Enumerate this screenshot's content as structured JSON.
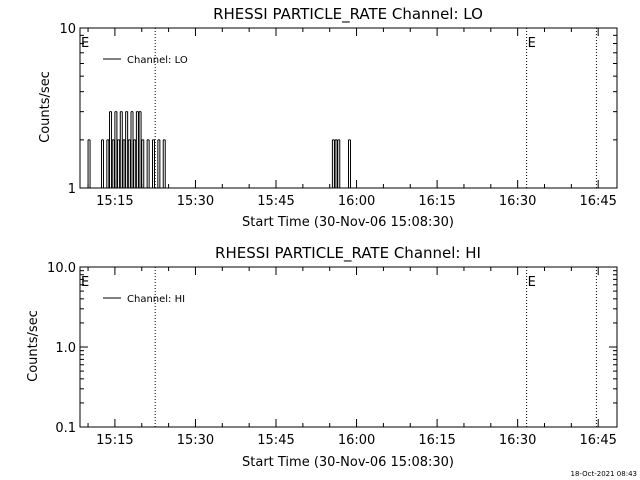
{
  "footer_timestamp": "18-Oct-2021 08:43",
  "colors": {
    "background": "#ffffff",
    "ink": "#000000"
  },
  "chart_data": [
    {
      "type": "line",
      "title": "RHESSI PARTICLE_RATE Channel: LO",
      "xlabel": "Start Time (30-Nov-06 15:08:30)",
      "ylabel": "Counts/sec",
      "yscale": "log",
      "xlim": [
        "15:08:30",
        "16:48:30"
      ],
      "ylim": [
        1,
        10
      ],
      "x_ticks": [
        "15:15",
        "15:30",
        "15:45",
        "16:00",
        "16:15",
        "16:30",
        "16:45"
      ],
      "y_ticks": [
        "1",
        "10"
      ],
      "legend_position": "top-left",
      "series": [
        {
          "name": "Channel: LO",
          "x": [
            "15:09:30",
            "15:10:00",
            "15:10:30",
            "15:11:00",
            "15:12:00",
            "15:12:30",
            "15:13:00",
            "15:13:30",
            "15:14:00",
            "15:14:30",
            "15:15:00",
            "15:15:30",
            "15:16:00",
            "15:16:30",
            "15:17:00",
            "15:17:30",
            "15:18:00",
            "15:18:30",
            "15:19:00",
            "15:19:30",
            "15:20:00",
            "15:20:30",
            "15:21:00",
            "15:21:30",
            "15:22:00",
            "15:22:30",
            "15:23:00",
            "15:23:30",
            "15:24:00",
            "15:24:30",
            "15:55:00",
            "15:55:30",
            "15:56:00",
            "15:56:30",
            "15:57:00",
            "15:57:30",
            "15:58:00",
            "15:58:30",
            "15:59:00"
          ],
          "y": [
            1,
            2,
            1,
            1,
            1,
            2,
            1,
            2,
            3,
            2,
            3,
            2,
            3,
            2,
            3,
            2,
            3,
            2,
            3,
            3,
            2,
            1,
            2,
            1,
            2,
            1,
            2,
            1,
            2,
            1,
            1,
            2,
            2,
            2,
            1,
            1,
            1,
            2,
            1
          ]
        }
      ],
      "vlines": [
        {
          "time": "15:22:30",
          "label": ""
        },
        {
          "time": "16:31:40",
          "label": "E"
        },
        {
          "time": "16:44:40",
          "label": ""
        }
      ],
      "edge_label": "E"
    },
    {
      "type": "line",
      "title": "RHESSI PARTICLE_RATE Channel: HI",
      "xlabel": "Start Time (30-Nov-06 15:08:30)",
      "ylabel": "Counts/sec",
      "yscale": "log",
      "xlim": [
        "15:08:30",
        "16:48:30"
      ],
      "ylim": [
        0.1,
        10
      ],
      "x_ticks": [
        "15:15",
        "15:30",
        "15:45",
        "16:00",
        "16:15",
        "16:30",
        "16:45"
      ],
      "y_ticks": [
        "0.1",
        "1.0",
        "10.0"
      ],
      "legend_position": "top-left",
      "series": [
        {
          "name": "Channel: HI",
          "x": [],
          "y": []
        }
      ],
      "vlines": [
        {
          "time": "15:22:30",
          "label": ""
        },
        {
          "time": "16:31:40",
          "label": "E"
        },
        {
          "time": "16:44:40",
          "label": ""
        }
      ],
      "edge_label": "E"
    }
  ]
}
